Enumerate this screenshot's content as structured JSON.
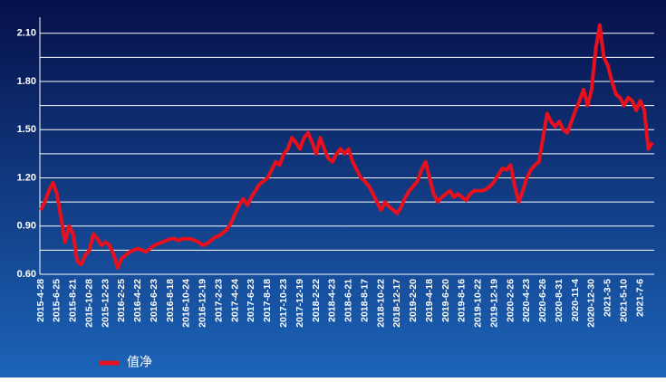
{
  "chart_data": {
    "type": "line",
    "categories": [
      "2015-4-28",
      null,
      null,
      null,
      "2015-6-25",
      null,
      null,
      null,
      "2015-8-21",
      null,
      null,
      null,
      "2015-10-28",
      null,
      null,
      null,
      "2015-12-23",
      null,
      null,
      null,
      "2016-2-25",
      null,
      null,
      null,
      "2016-4-22",
      null,
      null,
      null,
      "2016-6-23",
      null,
      null,
      null,
      "2016-8-18",
      null,
      null,
      null,
      "2016-10-24",
      null,
      null,
      null,
      "2016-12-19",
      null,
      null,
      null,
      "2017-2-23",
      null,
      null,
      null,
      "2017-4-24",
      null,
      null,
      null,
      "2017-6-23",
      null,
      null,
      null,
      "2017-8-18",
      null,
      null,
      null,
      "2017-10-23",
      null,
      null,
      null,
      "2017-12-19",
      null,
      null,
      null,
      "2018-2-22",
      null,
      null,
      null,
      "2018-4-23",
      null,
      null,
      null,
      "2018-6-21",
      null,
      null,
      null,
      "2018-8-17",
      null,
      null,
      null,
      "2018-10-22",
      null,
      null,
      null,
      "2018-12-17",
      null,
      null,
      null,
      "2019-2-20",
      null,
      null,
      null,
      "2019-4-18",
      null,
      null,
      null,
      "2019-6-20",
      null,
      null,
      null,
      "2019-8-16",
      null,
      null,
      null,
      "2019-10-22",
      null,
      null,
      null,
      "2019-12-19",
      null,
      null,
      null,
      "2020-2-26",
      null,
      null,
      null,
      "2020-4-23",
      null,
      null,
      null,
      "2020-6-26",
      null,
      null,
      null,
      "2020-8-31",
      null,
      null,
      null,
      "2020-11-4",
      null,
      null,
      null,
      "2020-12-30",
      null,
      null,
      null,
      "2021-3-5",
      null,
      null,
      null,
      "2021-5-10",
      null,
      null,
      null,
      "2021-7-6",
      null,
      null,
      null
    ],
    "series": [
      {
        "name": "值净",
        "color": "#e8101c",
        "values": [
          1.0,
          1.05,
          1.12,
          1.17,
          1.1,
          0.95,
          0.8,
          0.9,
          0.85,
          0.68,
          0.66,
          0.72,
          0.75,
          0.85,
          0.82,
          0.78,
          0.8,
          0.78,
          0.72,
          0.64,
          0.7,
          0.72,
          0.74,
          0.75,
          0.76,
          0.75,
          0.74,
          0.76,
          0.78,
          0.79,
          0.8,
          0.81,
          0.82,
          0.82,
          0.81,
          0.82,
          0.82,
          0.82,
          0.81,
          0.8,
          0.78,
          0.79,
          0.81,
          0.83,
          0.84,
          0.86,
          0.88,
          0.92,
          0.98,
          1.03,
          1.07,
          1.03,
          1.08,
          1.12,
          1.16,
          1.18,
          1.2,
          1.25,
          1.3,
          1.28,
          1.35,
          1.38,
          1.45,
          1.42,
          1.38,
          1.45,
          1.48,
          1.42,
          1.35,
          1.45,
          1.38,
          1.32,
          1.3,
          1.35,
          1.38,
          1.35,
          1.38,
          1.3,
          1.25,
          1.2,
          1.18,
          1.15,
          1.1,
          1.05,
          1.0,
          1.05,
          1.02,
          1.0,
          0.98,
          1.02,
          1.08,
          1.12,
          1.15,
          1.18,
          1.25,
          1.3,
          1.2,
          1.1,
          1.05,
          1.08,
          1.1,
          1.12,
          1.08,
          1.1,
          1.08,
          1.06,
          1.1,
          1.12,
          1.12,
          1.12,
          1.13,
          1.15,
          1.18,
          1.22,
          1.26,
          1.25,
          1.28,
          1.15,
          1.05,
          1.12,
          1.2,
          1.25,
          1.28,
          1.3,
          1.45,
          1.6,
          1.55,
          1.52,
          1.55,
          1.5,
          1.48,
          1.55,
          1.62,
          1.68,
          1.75,
          1.65,
          1.75,
          2.0,
          2.15,
          1.95,
          1.9,
          1.8,
          1.72,
          1.7,
          1.65,
          1.7,
          1.68,
          1.62,
          1.68,
          1.62,
          1.38,
          1.42
        ]
      }
    ],
    "ylim": [
      0.6,
      2.2
    ],
    "yticks": [
      {
        "value": 0.6,
        "label": "0.60"
      },
      {
        "value": 0.9,
        "label": "0.90"
      },
      {
        "value": 1.2,
        "label": "1.20"
      },
      {
        "value": 1.5,
        "label": "1.50"
      },
      {
        "value": 1.8,
        "label": "1.80"
      },
      {
        "value": 2.1,
        "label": "2.10"
      }
    ],
    "minor_yticks": [
      0.75,
      1.05,
      1.35,
      1.65,
      1.95
    ],
    "grid": true
  }
}
